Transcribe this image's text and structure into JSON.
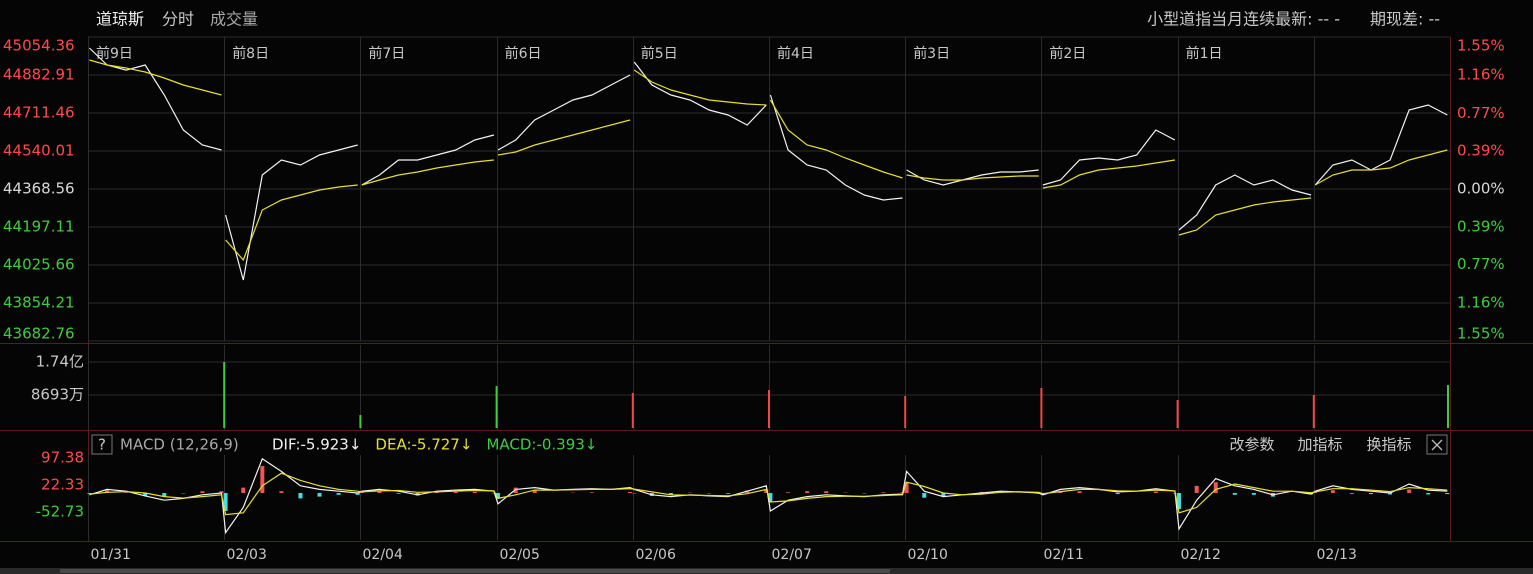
{
  "header": {
    "name": "道琼斯",
    "tabs": [
      "分时",
      "成交量"
    ],
    "contract": "小型道指当月连续最新: -- -",
    "basis": "期现差: --"
  },
  "macd_panel": {
    "help": "?",
    "indicator": "MACD (12,26,9)",
    "buttons": [
      "改参数",
      "加指标",
      "换指标"
    ]
  },
  "chart_data": [
    {
      "type": "line",
      "xlim": [
        0,
        10
      ],
      "xticks": [
        {
          "value": 0,
          "label": "前9日"
        },
        {
          "value": 1,
          "label": "前8日"
        },
        {
          "value": 2,
          "label": "前7日"
        },
        {
          "value": 3,
          "label": "前6日"
        },
        {
          "value": 4,
          "label": "前5日"
        },
        {
          "value": 5,
          "label": "前4日"
        },
        {
          "value": 6,
          "label": "前3日"
        },
        {
          "value": 7,
          "label": "前2日"
        },
        {
          "value": 8,
          "label": "前1日"
        }
      ],
      "ylim": [
        43682.76,
        45054.36
      ],
      "yticks": [
        45054.36,
        44882.91,
        44711.46,
        44540.01,
        44368.56,
        44197.11,
        44025.66,
        43854.21,
        43682.76
      ],
      "y2lim": [
        -1.55,
        1.55
      ],
      "y2ticks": [
        {
          "value": 1.55,
          "label": "1.55%"
        },
        {
          "value": 1.16,
          "label": "1.16%"
        },
        {
          "value": 0.77,
          "label": "0.77%"
        },
        {
          "value": 0.39,
          "label": "0.39%"
        },
        {
          "value": 0,
          "label": "0.00%"
        },
        {
          "value": -0.39,
          "label": "0.39%"
        },
        {
          "value": -0.77,
          "label": "0.77%"
        },
        {
          "value": -1.16,
          "label": "1.16%"
        },
        {
          "value": -1.55,
          "label": "1.55%"
        }
      ],
      "up_color": "#ff4a4a",
      "down_color": "#3fcc3f",
      "flat_color": "#d8d8d8",
      "grid": true,
      "x": [
        0.01,
        0.14,
        0.28,
        0.42,
        0.56,
        0.7,
        0.84,
        0.98,
        1,
        1.01,
        1.14,
        1.28,
        1.42,
        1.56,
        1.7,
        1.84,
        1.98,
        2,
        2.01,
        2.14,
        2.28,
        2.42,
        2.56,
        2.7,
        2.84,
        2.98,
        3,
        3.01,
        3.14,
        3.28,
        3.42,
        3.56,
        3.7,
        3.84,
        3.98,
        4,
        4.01,
        4.14,
        4.28,
        4.42,
        4.56,
        4.7,
        4.84,
        4.98,
        5,
        5.01,
        5.14,
        5.28,
        5.42,
        5.56,
        5.7,
        5.84,
        5.98,
        6,
        6.01,
        6.14,
        6.28,
        6.42,
        6.56,
        6.7,
        6.84,
        6.98,
        7,
        7.01,
        7.14,
        7.28,
        7.42,
        7.56,
        7.7,
        7.84,
        7.98,
        8,
        8.01,
        8.14,
        8.28,
        8.42,
        8.56,
        8.7,
        8.84,
        8.98,
        9,
        9.01,
        9.14,
        9.28,
        9.42,
        9.56,
        9.7,
        9.84,
        9.98
      ],
      "series": [
        {
          "color": "#f2f2f2",
          "values": [
            45004.7,
            44928,
            44905,
            44928,
            44792.7,
            44634.7,
            44567,
            44544.4,
            null,
            44251.2,
            43957.9,
            44431.7,
            44499.4,
            44476.8,
            44521.9,
            44544.4,
            44567,
            null,
            44386.6,
            44431.7,
            44499.4,
            44499.4,
            44521.9,
            44544.4,
            44589.6,
            44612.2,
            null,
            44544.4,
            44589.6,
            44679.8,
            44724.9,
            44770.1,
            44792.7,
            44837.8,
            44882.9,
            null,
            44941.6,
            44837.8,
            44792.7,
            44770.1,
            44724.9,
            44702.4,
            44657.3,
            44747.5,
            null,
            44792.7,
            44544.4,
            44476.8,
            44454.3,
            44386.6,
            44341.5,
            44319,
            44328,
            null,
            44454.3,
            44409.1,
            44386.6,
            44409.1,
            44431.7,
            44445.2,
            44445.2,
            44454.3,
            null,
            44386.6,
            44409.1,
            44499.4,
            44508.4,
            44499.4,
            44521.9,
            44634.7,
            44589.6,
            null,
            44183.6,
            44251.2,
            44386.6,
            44431.7,
            44386.6,
            44409.1,
            44364.1,
            44341.5,
            null,
            44386.6,
            44476.8,
            44499.4,
            44454.3,
            44499.4,
            44724.9,
            44747.5,
            44702.4
          ]
        },
        {
          "color": "#e6e02a",
          "values": [
            44950.6,
            44928,
            44914.5,
            44896.4,
            44869.4,
            44837.8,
            44815.2,
            44792.7,
            null,
            44138.4,
            44048.2,
            44273.8,
            44319,
            44341.5,
            44364.1,
            44377.6,
            44386.6,
            null,
            44386.6,
            44409.1,
            44431.7,
            44445.2,
            44463.3,
            44476.8,
            44490.4,
            44499.4,
            null,
            44521.9,
            44535.5,
            44567,
            44589.6,
            44612.2,
            44634.7,
            44657.3,
            44679.8,
            null,
            44905.5,
            44851.3,
            44815.2,
            44792.7,
            44770.1,
            44761.1,
            44752,
            44747.5,
            null,
            44770.1,
            44634.7,
            44567,
            44544.4,
            44508.4,
            44476.8,
            44445.2,
            44418.2,
            null,
            44431.7,
            44418.2,
            44409.1,
            44409.1,
            44418.2,
            44422.7,
            44427.2,
            44427.2,
            null,
            44373.1,
            44386.6,
            44431.7,
            44454.3,
            44463.3,
            44472.3,
            44485.8,
            44499.4,
            null,
            44161,
            44183.6,
            44251.2,
            44273.8,
            44296.3,
            44309.9,
            44319,
            44328,
            null,
            44386.6,
            44431.7,
            44454.3,
            44454.3,
            44463.3,
            44499.4,
            44521.9,
            44544.4
          ]
        }
      ]
    },
    {
      "type": "bar",
      "xlim": [
        0,
        10
      ],
      "ylim": [
        0,
        17400
      ],
      "yticks": [
        {
          "value": 17400,
          "label": "1.74亿"
        },
        {
          "value": 8693,
          "label": "8693万"
        }
      ],
      "grid": true,
      "x": [
        1,
        2,
        3,
        4,
        5,
        6,
        7,
        8,
        9,
        10
      ],
      "values": [
        17400,
        3427,
        11073,
        9227,
        10018,
        8436,
        10545,
        7382,
        8700,
        11336
      ],
      "colors": [
        "#3fcc3f",
        "#3fcc3f",
        "#3fcc3f",
        "#f04848",
        "#f04848",
        "#f04848",
        "#f04848",
        "#f04848",
        "#f04848",
        "#3fcc3f"
      ]
    },
    {
      "type": "macd",
      "xlim": [
        0,
        10
      ],
      "xticks": [
        {
          "value": 0,
          "label": "01/31"
        },
        {
          "value": 1,
          "label": "02/03"
        },
        {
          "value": 2,
          "label": "02/04"
        },
        {
          "value": 3,
          "label": "02/05"
        },
        {
          "value": 4,
          "label": "02/06"
        },
        {
          "value": 5,
          "label": "02/07"
        },
        {
          "value": 6,
          "label": "02/10"
        },
        {
          "value": 7,
          "label": "02/11"
        },
        {
          "value": 8,
          "label": "02/12"
        },
        {
          "value": 9,
          "label": "02/13"
        }
      ],
      "ylim": [
        -130.6,
        105.7
      ],
      "yticks": [
        97.38,
        22.33,
        -52.73
      ],
      "up_color": "#ff4a4a",
      "down_color": "#3fcc3f",
      "x": [
        0.01,
        0.14,
        0.28,
        0.42,
        0.56,
        0.7,
        0.84,
        0.98,
        1.01,
        1.14,
        1.28,
        1.42,
        1.56,
        1.7,
        1.84,
        1.98,
        2.01,
        2.14,
        2.28,
        2.42,
        2.56,
        2.7,
        2.84,
        2.98,
        3.01,
        3.14,
        3.28,
        3.42,
        3.56,
        3.7,
        3.84,
        3.98,
        4.01,
        4.14,
        4.28,
        4.42,
        4.56,
        4.7,
        4.84,
        4.98,
        5.01,
        5.14,
        5.28,
        5.42,
        5.56,
        5.7,
        5.84,
        5.98,
        6.01,
        6.14,
        6.28,
        6.42,
        6.56,
        6.7,
        6.84,
        6.98,
        7.01,
        7.14,
        7.28,
        7.42,
        7.56,
        7.7,
        7.84,
        7.98,
        8.01,
        8.14,
        8.28,
        8.42,
        8.56,
        8.7,
        8.84,
        8.98,
        9.01,
        9.14,
        9.28,
        9.42,
        9.56,
        9.7,
        9.84,
        9.98
      ],
      "series": [
        {
          "name": "DIF:-5.923↓",
          "color": "#f2f2f2",
          "values": [
            -5,
            10,
            5,
            -8,
            -20,
            -15,
            -5,
            0,
            -110,
            -40,
            95,
            60,
            20,
            10,
            5,
            0,
            5,
            10,
            5,
            -5,
            5,
            8,
            10,
            5,
            -30,
            10,
            15,
            8,
            10,
            12,
            10,
            15,
            10,
            -5,
            -10,
            -5,
            -8,
            -10,
            5,
            20,
            -50,
            -20,
            -10,
            -5,
            -8,
            -10,
            -5,
            -3,
            60,
            5,
            -10,
            -5,
            0,
            5,
            3,
            0,
            -5,
            10,
            15,
            10,
            3,
            5,
            12,
            5,
            -100,
            -20,
            40,
            20,
            10,
            -5,
            5,
            -3,
            5,
            20,
            10,
            5,
            0,
            25,
            8,
            5
          ]
        },
        {
          "name": "DEA:-5.727↓",
          "color": "#e6e02a",
          "values": [
            -3,
            2,
            4,
            0,
            -10,
            -14,
            -10,
            -5,
            -60,
            -55,
            20,
            55,
            35,
            20,
            10,
            5,
            3,
            6,
            7,
            2,
            3,
            5,
            7,
            6,
            -15,
            -5,
            8,
            8,
            9,
            10,
            10,
            12,
            11,
            3,
            -5,
            -6,
            -7,
            -8,
            -2,
            10,
            -25,
            -22,
            -15,
            -10,
            -9,
            -9,
            -7,
            -5,
            30,
            18,
            0,
            -5,
            -3,
            2,
            3,
            2,
            -2,
            4,
            10,
            10,
            6,
            5,
            8,
            6,
            -55,
            -40,
            10,
            25,
            15,
            5,
            5,
            1,
            3,
            12,
            12,
            8,
            4,
            15,
            12,
            8
          ]
        },
        {
          "name": "MACD:-0.393↓",
          "color": "#3fcc3f",
          "up_color": "#f05656",
          "down_color": "#3fe0e8",
          "values": [
            -2,
            8,
            1,
            -8,
            -10,
            -1,
            5,
            5,
            -50,
            15,
            75,
            5,
            -15,
            -10,
            -5,
            -5,
            2,
            4,
            -2,
            -7,
            2,
            3,
            3,
            -1,
            -15,
            15,
            7,
            0,
            1,
            2,
            0,
            3,
            -1,
            -8,
            -5,
            1,
            -1,
            -2,
            7,
            10,
            -25,
            2,
            5,
            5,
            1,
            -1,
            2,
            2,
            30,
            -13,
            -10,
            0,
            3,
            3,
            0,
            -2,
            -3,
            6,
            5,
            0,
            -3,
            0,
            4,
            -1,
            -45,
            20,
            30,
            -5,
            -5,
            -10,
            0,
            -4,
            2,
            8,
            -2,
            -3,
            -4,
            10,
            -4,
            -3
          ]
        }
      ]
    }
  ]
}
